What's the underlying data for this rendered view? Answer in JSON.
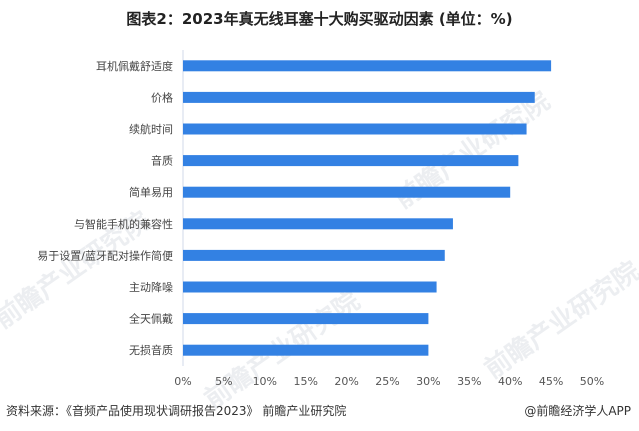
{
  "title": "图表2：2023年真无线耳塞十大购买驱动因素 (单位：%)",
  "footer": {
    "source": "资料来源：《音频产品使用现状调研报告2023》 前瞻产业研究院",
    "credit": "@前瞻经济学人APP"
  },
  "watermark": "前瞻产业研究院",
  "colors": {
    "bar": "#3381E3",
    "axis": "#D0D8E8",
    "text": "#444444"
  },
  "chart_data": {
    "type": "bar",
    "orientation": "horizontal",
    "title": "图表2：2023年真无线耳塞十大购买驱动因素 (单位：%)",
    "categories": [
      "耳机佩戴舒适度",
      "价格",
      "续航时间",
      "音质",
      "简单易用",
      "与智能手机的兼容性",
      "易于设置/蓝牙配对操作简便",
      "主动降噪",
      "全天佩戴",
      "无损音质"
    ],
    "values": [
      45,
      43,
      42,
      41,
      40,
      33,
      32,
      31,
      30,
      30
    ],
    "xlim": [
      0,
      50
    ],
    "xticks": [
      "0%",
      "5%",
      "10%",
      "15%",
      "20%",
      "25%",
      "30%",
      "35%",
      "40%",
      "45%",
      "50%"
    ],
    "grid": false,
    "legend": "none"
  }
}
